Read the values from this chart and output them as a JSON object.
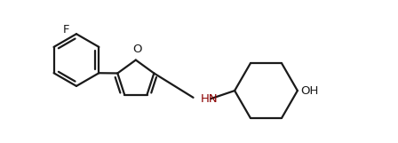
{
  "background_color": "#ffffff",
  "line_color": "#1a1a1a",
  "line_width": 1.6,
  "font_size_labels": 9.5,
  "font_color": "#1a1a1a",
  "label_F": "F",
  "label_O": "O",
  "label_NH": "HN",
  "label_OH": "OH",
  "xlim": [
    0.0,
    9.5
  ],
  "ylim": [
    0.5,
    4.2
  ]
}
